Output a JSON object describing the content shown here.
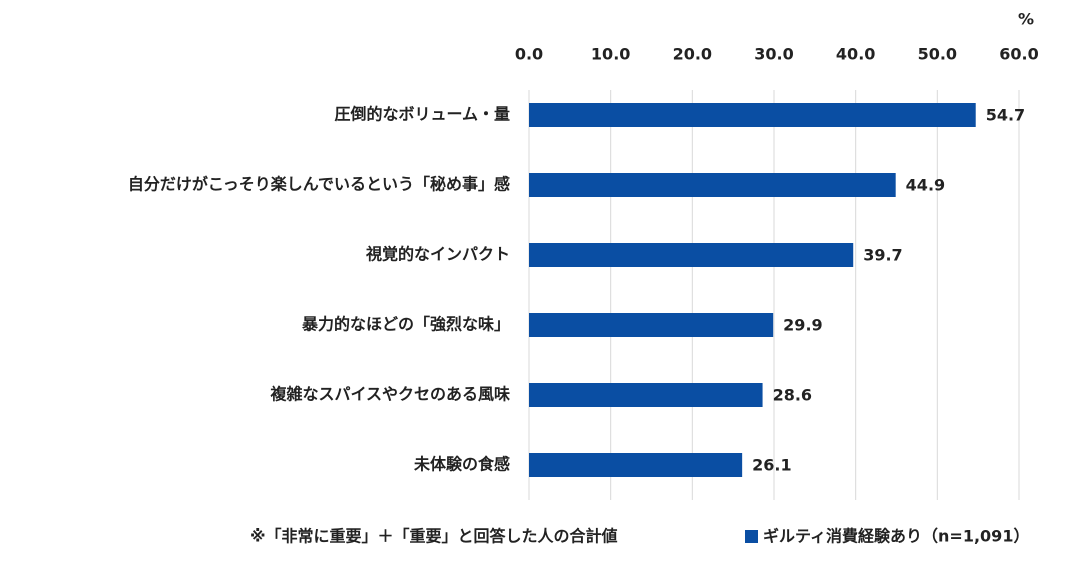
{
  "chart_data": {
    "type": "bar",
    "orientation": "horizontal",
    "unit": "%",
    "categories": [
      "圧倒的なボリューム・量",
      "自分だけがこっそり楽しんでいるという「秘め事」感",
      "視覚的なインパクト",
      "暴力的なほどの「強烈な味」",
      "複雑なスパイスやクセのある風味",
      "未体験の食感"
    ],
    "series": [
      {
        "name": "ギルティ消費経験あり（n=1,091）",
        "color": "#0a4ea3",
        "values": [
          54.7,
          44.9,
          39.7,
          29.9,
          28.6,
          26.1
        ]
      }
    ],
    "xlim": [
      0,
      60
    ],
    "xticks": [
      {
        "value": 0,
        "label": "0.0"
      },
      {
        "value": 10,
        "label": "10.0"
      },
      {
        "value": 20,
        "label": "20.0"
      },
      {
        "value": 30,
        "label": "30.0"
      },
      {
        "value": 40,
        "label": "40.0"
      },
      {
        "value": 50,
        "label": "50.0"
      },
      {
        "value": 60,
        "label": "60.0"
      }
    ],
    "grid": true,
    "footnote": "※「非常に重要」＋「重要」と回答した人の合計値"
  }
}
